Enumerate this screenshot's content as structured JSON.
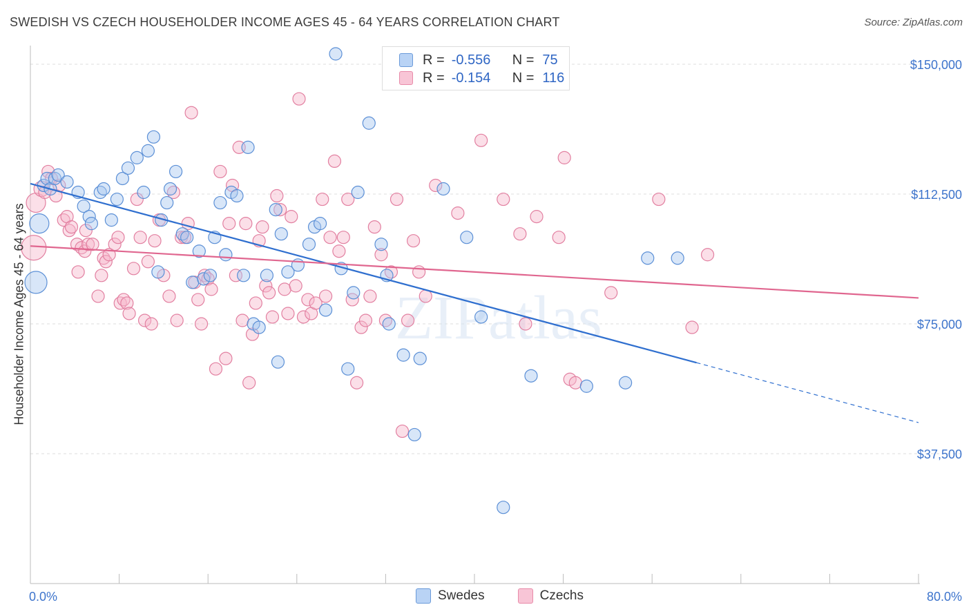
{
  "title": "SWEDISH VS CZECH HOUSEHOLDER INCOME AGES 45 - 64 YEARS CORRELATION CHART",
  "source": "Source: ZipAtlas.com",
  "watermark": "ZIPatlas",
  "legend": {
    "series": [
      {
        "r_label": "R =",
        "r_value": "-0.556",
        "n_label": "N =",
        "n_value": "75"
      },
      {
        "r_label": "R =",
        "r_value": "-0.154",
        "n_label": "N =",
        "n_value": "116"
      }
    ]
  },
  "bottom_legend": {
    "swedes": "Swedes",
    "czechs": "Czechs"
  },
  "colors": {
    "swedes_fill": "#a9c8f0",
    "swedes_stroke": "#5b8fd6",
    "swedes_line": "#2f6fcf",
    "czechs_fill": "#f6b8cd",
    "czechs_stroke": "#e27fa0",
    "czechs_line": "#e0668f",
    "axis_text": "#3d74cc",
    "grid": "#dddddd"
  },
  "chart_data": {
    "type": "scatter",
    "title": "SWEDISH VS CZECH HOUSEHOLDER INCOME AGES 45 - 64 YEARS CORRELATION CHART",
    "xlabel": "",
    "ylabel": "Householder Income Ages 45 - 64 years",
    "xlim": [
      0,
      80
    ],
    "ylim": [
      0,
      153000
    ],
    "x_tick_labels": [
      "0.0%",
      "80.0%"
    ],
    "y_ticks": [
      37500,
      75000,
      112500,
      150000
    ],
    "y_tick_labels": [
      "$37,500",
      "$75,000",
      "$112,500",
      "$150,000"
    ],
    "grid": true,
    "series": [
      {
        "name": "Swedes",
        "trend": {
          "x0": 0,
          "y0": 115500,
          "x1": 60,
          "y1": 63800,
          "dashed_to_x": 80,
          "dashed_to_y": 46500
        },
        "points": [
          [
            0.5,
            87000,
            16
          ],
          [
            0.8,
            104000,
            14
          ],
          [
            1.2,
            115000,
            9
          ],
          [
            1.5,
            117000,
            9
          ],
          [
            1.8,
            114000,
            9
          ],
          [
            2.2,
            117000,
            9
          ],
          [
            2.5,
            118000,
            9
          ],
          [
            3.3,
            116000,
            9
          ],
          [
            4.3,
            113000,
            9
          ],
          [
            4.8,
            109000,
            9
          ],
          [
            5.3,
            106000,
            9
          ],
          [
            5.5,
            104000,
            9
          ],
          [
            6.3,
            113000,
            9
          ],
          [
            6.6,
            114000,
            9
          ],
          [
            7.3,
            105000,
            9
          ],
          [
            7.8,
            111000,
            9
          ],
          [
            8.3,
            117000,
            9
          ],
          [
            8.8,
            120000,
            9
          ],
          [
            9.6,
            123000,
            9
          ],
          [
            10.2,
            113000,
            9
          ],
          [
            10.6,
            125000,
            9
          ],
          [
            11.1,
            129000,
            9
          ],
          [
            11.5,
            90000,
            9
          ],
          [
            11.8,
            105000,
            9
          ],
          [
            12.3,
            110000,
            9
          ],
          [
            12.6,
            114000,
            9
          ],
          [
            13.1,
            119000,
            9
          ],
          [
            13.7,
            101000,
            9
          ],
          [
            14.1,
            100000,
            9
          ],
          [
            14.6,
            87000,
            9
          ],
          [
            15.2,
            96000,
            9
          ],
          [
            15.6,
            88000,
            9
          ],
          [
            16.2,
            89000,
            9
          ],
          [
            16.6,
            100000,
            9
          ],
          [
            17.1,
            110000,
            9
          ],
          [
            17.6,
            95000,
            9
          ],
          [
            18.1,
            113000,
            9
          ],
          [
            18.6,
            112000,
            9
          ],
          [
            19.2,
            89000,
            9
          ],
          [
            19.6,
            126000,
            9
          ],
          [
            20.1,
            75000,
            9
          ],
          [
            20.6,
            74000,
            9
          ],
          [
            21.3,
            89000,
            9
          ],
          [
            22.1,
            108000,
            9
          ],
          [
            22.6,
            101000,
            9
          ],
          [
            22.3,
            64000,
            9
          ],
          [
            23.2,
            90000,
            9
          ],
          [
            24.1,
            92000,
            9
          ],
          [
            25.1,
            98000,
            9
          ],
          [
            25.6,
            103000,
            9
          ],
          [
            26.1,
            104000,
            9
          ],
          [
            26.6,
            79000,
            9
          ],
          [
            27.5,
            153000,
            9
          ],
          [
            28.0,
            91000,
            9
          ],
          [
            28.6,
            62000,
            9
          ],
          [
            29.1,
            84000,
            9
          ],
          [
            29.5,
            113000,
            9
          ],
          [
            30.5,
            133000,
            9
          ],
          [
            31.6,
            98000,
            9
          ],
          [
            32.1,
            89000,
            9
          ],
          [
            32.3,
            75000,
            9
          ],
          [
            33.6,
            66000,
            9
          ],
          [
            35.1,
            65000,
            9
          ],
          [
            34.6,
            43000,
            9
          ],
          [
            37.2,
            114000,
            9
          ],
          [
            39.3,
            100000,
            9
          ],
          [
            40.6,
            77000,
            9
          ],
          [
            42.6,
            22000,
            9
          ],
          [
            45.1,
            60000,
            9
          ],
          [
            50.1,
            57000,
            9
          ],
          [
            53.6,
            58000,
            9
          ],
          [
            55.6,
            94000,
            9
          ],
          [
            58.3,
            94000,
            9
          ]
        ]
      },
      {
        "name": "Czechs",
        "trend": {
          "x0": 0,
          "y0": 97500,
          "x1": 80,
          "y1": 82500
        },
        "points": [
          [
            0.5,
            110000,
            14
          ],
          [
            0.3,
            97000,
            18
          ],
          [
            1.0,
            114000,
            11
          ],
          [
            1.3,
            113000,
            9
          ],
          [
            1.6,
            119000,
            9
          ],
          [
            1.9,
            117000,
            9
          ],
          [
            2.3,
            112000,
            9
          ],
          [
            2.6,
            115000,
            9
          ],
          [
            3.0,
            105000,
            9
          ],
          [
            3.3,
            106000,
            9
          ],
          [
            3.5,
            102000,
            9
          ],
          [
            3.7,
            103000,
            9
          ],
          [
            4.2,
            98000,
            9
          ],
          [
            4.3,
            90000,
            9
          ],
          [
            4.6,
            97000,
            9
          ],
          [
            4.9,
            96000,
            9
          ],
          [
            5.0,
            102000,
            9
          ],
          [
            5.2,
            98000,
            9
          ],
          [
            5.6,
            98000,
            9
          ],
          [
            6.1,
            83000,
            9
          ],
          [
            6.4,
            89000,
            9
          ],
          [
            6.6,
            94000,
            9
          ],
          [
            6.8,
            93000,
            9
          ],
          [
            7.1,
            95000,
            9
          ],
          [
            7.6,
            98000,
            9
          ],
          [
            7.9,
            100000,
            9
          ],
          [
            8.1,
            81000,
            9
          ],
          [
            8.4,
            82000,
            9
          ],
          [
            8.7,
            81000,
            9
          ],
          [
            8.9,
            78000,
            9
          ],
          [
            9.3,
            91000,
            9
          ],
          [
            9.6,
            111000,
            9
          ],
          [
            9.9,
            100000,
            9
          ],
          [
            10.3,
            76000,
            9
          ],
          [
            10.6,
            93000,
            9
          ],
          [
            10.9,
            75000,
            9
          ],
          [
            11.2,
            99000,
            9
          ],
          [
            11.6,
            105000,
            9
          ],
          [
            12.0,
            89000,
            9
          ],
          [
            12.5,
            83000,
            9
          ],
          [
            12.9,
            113000,
            9
          ],
          [
            13.2,
            76000,
            9
          ],
          [
            13.6,
            100000,
            9
          ],
          [
            13.9,
            100000,
            9
          ],
          [
            14.2,
            104000,
            9
          ],
          [
            14.5,
            136000,
            9
          ],
          [
            14.8,
            87000,
            9
          ],
          [
            15.1,
            82000,
            9
          ],
          [
            15.4,
            75000,
            9
          ],
          [
            15.7,
            89000,
            9
          ],
          [
            16.0,
            88000,
            9
          ],
          [
            16.3,
            85000,
            9
          ],
          [
            16.7,
            62000,
            9
          ],
          [
            17.1,
            119000,
            9
          ],
          [
            17.6,
            65000,
            9
          ],
          [
            17.9,
            104000,
            9
          ],
          [
            18.2,
            115000,
            9
          ],
          [
            18.5,
            89000,
            9
          ],
          [
            18.8,
            126000,
            9
          ],
          [
            19.1,
            76000,
            9
          ],
          [
            19.4,
            104000,
            9
          ],
          [
            19.7,
            58000,
            9
          ],
          [
            20.0,
            72000,
            9
          ],
          [
            20.3,
            81000,
            9
          ],
          [
            20.6,
            99000,
            9
          ],
          [
            20.9,
            103000,
            9
          ],
          [
            21.2,
            86000,
            9
          ],
          [
            21.5,
            84000,
            9
          ],
          [
            21.8,
            77000,
            9
          ],
          [
            22.2,
            112000,
            9
          ],
          [
            22.5,
            108000,
            9
          ],
          [
            22.9,
            85000,
            9
          ],
          [
            23.2,
            78000,
            9
          ],
          [
            23.5,
            106000,
            9
          ],
          [
            23.9,
            86000,
            9
          ],
          [
            24.2,
            140000,
            9
          ],
          [
            24.6,
            77000,
            9
          ],
          [
            25.0,
            82000,
            9
          ],
          [
            25.3,
            78000,
            9
          ],
          [
            25.7,
            81000,
            9
          ],
          [
            26.3,
            111000,
            9
          ],
          [
            26.6,
            83000,
            9
          ],
          [
            27.0,
            100000,
            9
          ],
          [
            27.4,
            122000,
            9
          ],
          [
            27.8,
            96000,
            9
          ],
          [
            28.2,
            100000,
            9
          ],
          [
            28.6,
            111000,
            9
          ],
          [
            29.0,
            82000,
            9
          ],
          [
            29.4,
            58000,
            9
          ],
          [
            29.8,
            74000,
            9
          ],
          [
            30.2,
            76000,
            9
          ],
          [
            30.6,
            83000,
            9
          ],
          [
            31.0,
            103000,
            9
          ],
          [
            31.6,
            95000,
            9
          ],
          [
            32.0,
            76000,
            9
          ],
          [
            32.5,
            90000,
            9
          ],
          [
            33.0,
            111000,
            9
          ],
          [
            33.5,
            44000,
            9
          ],
          [
            34.0,
            76000,
            9
          ],
          [
            34.5,
            99000,
            9
          ],
          [
            35.0,
            90000,
            9
          ],
          [
            35.6,
            83000,
            9
          ],
          [
            36.5,
            115000,
            9
          ],
          [
            38.5,
            107000,
            9
          ],
          [
            40.6,
            128000,
            9
          ],
          [
            42.6,
            111000,
            9
          ],
          [
            44.1,
            101000,
            9
          ],
          [
            44.6,
            75000,
            9
          ],
          [
            45.6,
            106000,
            9
          ],
          [
            47.6,
            100000,
            9
          ],
          [
            48.1,
            123000,
            9
          ],
          [
            48.6,
            59000,
            9
          ],
          [
            49.1,
            58000,
            9
          ],
          [
            52.3,
            84000,
            9
          ],
          [
            56.6,
            111000,
            9
          ],
          [
            59.6,
            74000,
            9
          ],
          [
            61.0,
            95000,
            9
          ]
        ]
      }
    ]
  }
}
